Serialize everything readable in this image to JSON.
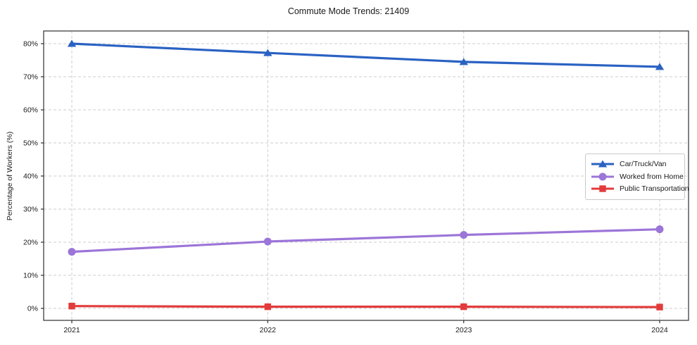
{
  "chart_data": {
    "type": "line",
    "title": "Commute Mode Trends: 21409",
    "xlabel": "",
    "ylabel": "Percentage of Workers (%)",
    "x": [
      2021,
      2022,
      2023,
      2024
    ],
    "series": [
      {
        "name": "Car/Truck/Van",
        "values": [
          80.0,
          77.2,
          74.5,
          73.0
        ],
        "color": "#2a62c3",
        "marker": "triangle"
      },
      {
        "name": "Worked from Home",
        "values": [
          17.1,
          20.2,
          22.2,
          23.9
        ],
        "color": "#9c75d8",
        "marker": "circle"
      },
      {
        "name": "Public Transportation",
        "values": [
          0.7,
          0.5,
          0.5,
          0.4
        ],
        "color": "#e23b3b",
        "marker": "square"
      }
    ],
    "yticks": [
      0,
      10,
      20,
      30,
      40,
      50,
      60,
      70,
      80
    ],
    "ytick_suffix": "%",
    "ylim": [
      -3.6,
      83.8
    ],
    "grid": true,
    "grid_style": "dashed",
    "legend_position": "right-middle",
    "colors": {
      "grid": "#cdcdcd",
      "spine": "#2f2f2f",
      "text": "#1a1a1a",
      "background": "#ffffff"
    }
  }
}
